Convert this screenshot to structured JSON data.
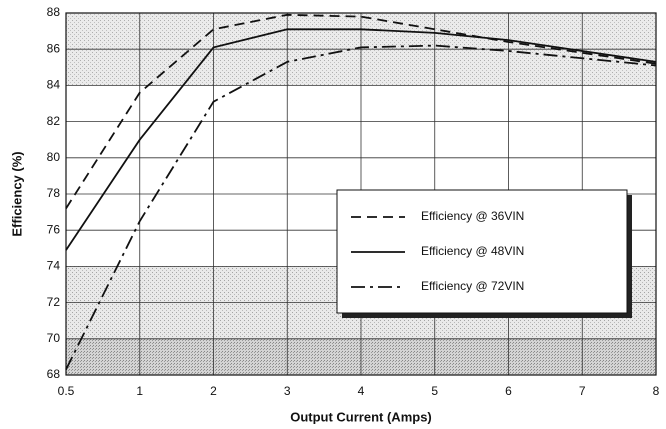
{
  "chart_data": {
    "type": "line",
    "x_label": "Output Current (Amps)",
    "y_label": "Efficiency (%)",
    "categories": [
      "0.5",
      "1",
      "2",
      "3",
      "4",
      "5",
      "6",
      "7",
      "8"
    ],
    "ylim": [
      68,
      88
    ],
    "yticks": [
      68,
      70,
      72,
      74,
      76,
      78,
      80,
      82,
      84,
      86,
      88
    ],
    "grid": true,
    "legend": "center-right",
    "series": [
      {
        "name": "Efficiency @ 36VIN",
        "color": "#111111",
        "dash": "dashed",
        "values": [
          77.2,
          83.6,
          87.1,
          87.9,
          87.8,
          87.1,
          86.4,
          85.8,
          85.2
        ]
      },
      {
        "name": "Efficiency @ 48VIN",
        "color": "#111111",
        "dash": "solid",
        "values": [
          74.9,
          81.0,
          86.1,
          87.1,
          87.1,
          86.9,
          86.5,
          85.9,
          85.3
        ]
      },
      {
        "name": "Efficiency @ 72VIN",
        "color": "#111111",
        "dash": "dashdot",
        "values": [
          68.3,
          76.5,
          83.1,
          85.3,
          86.1,
          86.2,
          85.9,
          85.5,
          85.1
        ]
      }
    ]
  }
}
